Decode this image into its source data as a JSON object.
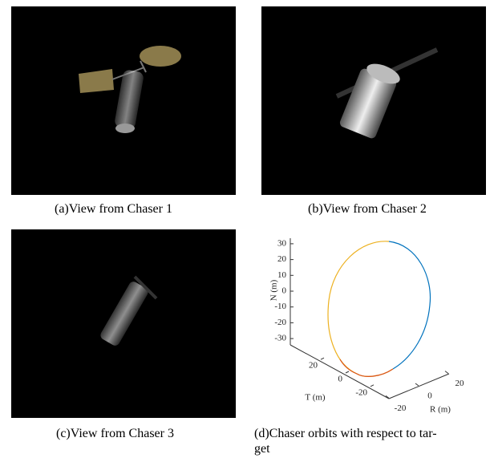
{
  "panels": [
    {
      "caption": "(a)View from Chaser 1"
    },
    {
      "caption": "(b)View from Chaser 2"
    },
    {
      "caption": "(c)View from Chaser 3"
    },
    {
      "caption_lines": [
        "(d)Chaser orbits with respect to tar-",
        "get"
      ]
    }
  ],
  "plot": {
    "n_label": "N (m)",
    "t_label": "T (m)",
    "r_label": "R (m)",
    "n_ticks": [
      30,
      20,
      10,
      0,
      -10,
      -20,
      -30
    ],
    "t_ticks": [
      20,
      0,
      -20
    ],
    "r_ticks": [
      20,
      0,
      -20
    ]
  }
}
